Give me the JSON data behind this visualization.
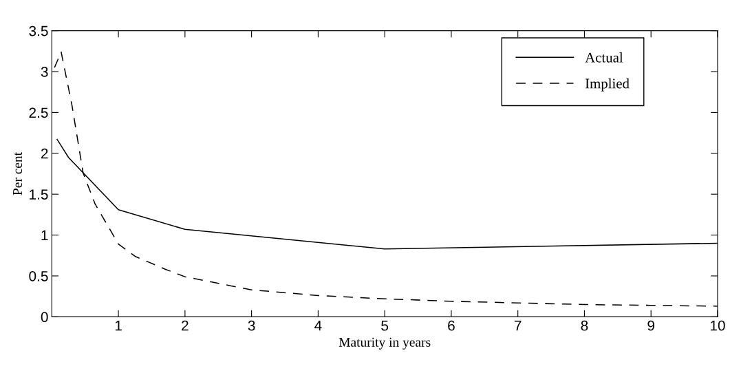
{
  "chart_data": {
    "type": "line",
    "xlabel": "Maturity in years",
    "ylabel": "Per cent",
    "xlim": [
      0,
      10
    ],
    "xticks": [
      1,
      2,
      3,
      4,
      5,
      6,
      7,
      8,
      9,
      10
    ],
    "ylim": [
      0,
      3.5
    ],
    "yticks": [
      0,
      0.5,
      1,
      1.5,
      2,
      2.5,
      3,
      3.5
    ],
    "grid": false,
    "legend": "top right",
    "series": [
      {
        "name": "Actual",
        "color": "#000000",
        "line_style": "solid",
        "x": [
          0.08,
          0.25,
          1,
          2,
          5,
          10
        ],
        "values": [
          2.17,
          1.95,
          1.31,
          1.07,
          0.83,
          0.9
        ]
      },
      {
        "name": "Implied",
        "color": "#000000",
        "line_style": "dashed",
        "x": [
          0.04,
          0.14,
          0.3,
          0.47,
          0.65,
          1,
          1.25,
          1.71,
          2,
          2.68,
          3,
          4,
          5,
          6,
          7,
          8,
          9,
          10
        ],
        "values": [
          3.05,
          3.24,
          2.6,
          1.76,
          1.38,
          0.89,
          0.74,
          0.58,
          0.49,
          0.38,
          0.33,
          0.26,
          0.22,
          0.19,
          0.17,
          0.15,
          0.14,
          0.13
        ]
      }
    ]
  }
}
